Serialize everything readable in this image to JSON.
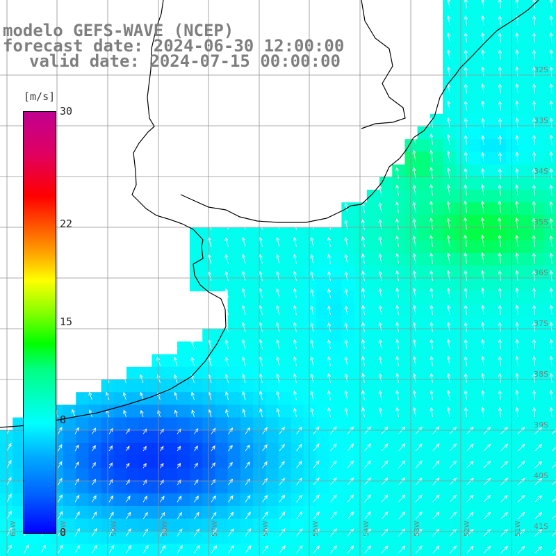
{
  "header": {
    "line1": "modelo GEFS-WAVE (NCEP)",
    "line2": "forecast date: 2024-06-30 12:00:00",
    "line3": "valid date: 2024-07-15 00:00:00"
  },
  "colorbar": {
    "units": "[m/s]",
    "ticks": [
      {
        "label": "30",
        "value": 30
      },
      {
        "label": "22",
        "value": 22
      },
      {
        "label": "15",
        "value": 15
      },
      {
        "label": "8",
        "value": 8
      },
      {
        "label": "0",
        "value": 0
      }
    ],
    "vmin": 0,
    "vmax": 30
  },
  "map": {
    "lat_labels": [
      "32S",
      "33S",
      "34S",
      "35S",
      "36S",
      "37S",
      "38S",
      "39S",
      "40S",
      "41S"
    ],
    "lon_labels": [
      "61W",
      "60W",
      "59W",
      "58W",
      "57W",
      "56W",
      "55W",
      "54W",
      "53W",
      "52W",
      "51W"
    ],
    "colors": {
      "land": "#ffffff",
      "grid": "#909090",
      "coast": "#000000",
      "arrow": "#ffffff"
    }
  }
}
